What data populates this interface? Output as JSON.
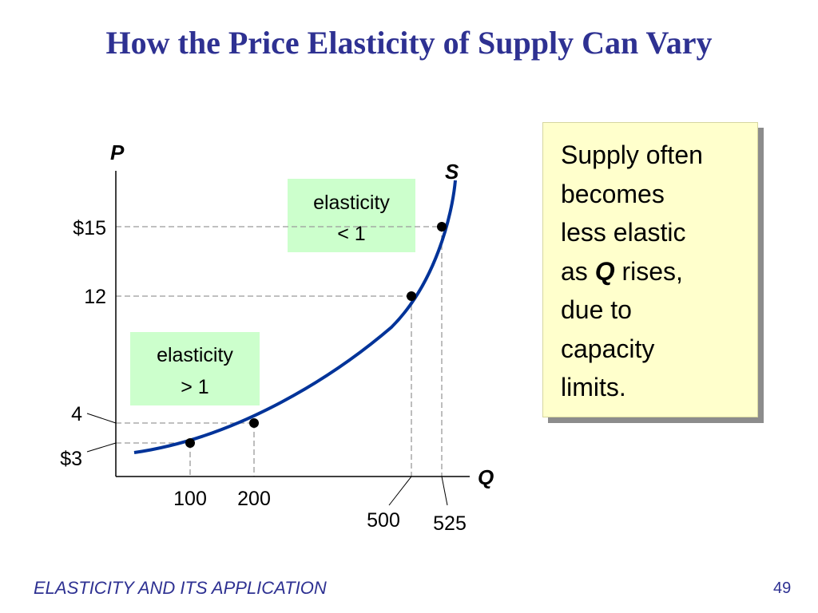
{
  "slide": {
    "title": "How the Price Elasticity of Supply Can Vary",
    "footer": "ELASTICITY AND ITS APPLICATION",
    "page_number": "49"
  },
  "note": {
    "line1": "Supply often",
    "line2": "becomes",
    "line3": "less elastic",
    "line4_pre": "as ",
    "line4_var": "Q",
    "line4_post": " rises,",
    "line5": "due to",
    "line6": "capacity",
    "line7": "limits."
  },
  "colors": {
    "title": "#2e3192",
    "curve": "#003399",
    "box_fill": "#ccffcc",
    "note_fill": "#ffffcc",
    "guide": "#9a9a9a"
  },
  "chart_data": {
    "type": "line",
    "xlabel": "Q",
    "ylabel": "P",
    "series": [
      {
        "name": "S",
        "points": [
          {
            "x": 100,
            "y": 3
          },
          {
            "x": 200,
            "y": 4
          },
          {
            "x": 500,
            "y": 12
          },
          {
            "x": 525,
            "y": 15
          }
        ]
      }
    ],
    "x_tick_labels": [
      "100",
      "200",
      "500",
      "525"
    ],
    "y_tick_labels": [
      "$3",
      "4",
      "12",
      "$15"
    ],
    "annotations": [
      {
        "line1": "elasticity",
        "line2": "< 1"
      },
      {
        "line1": "elasticity",
        "line2": "> 1"
      }
    ]
  }
}
